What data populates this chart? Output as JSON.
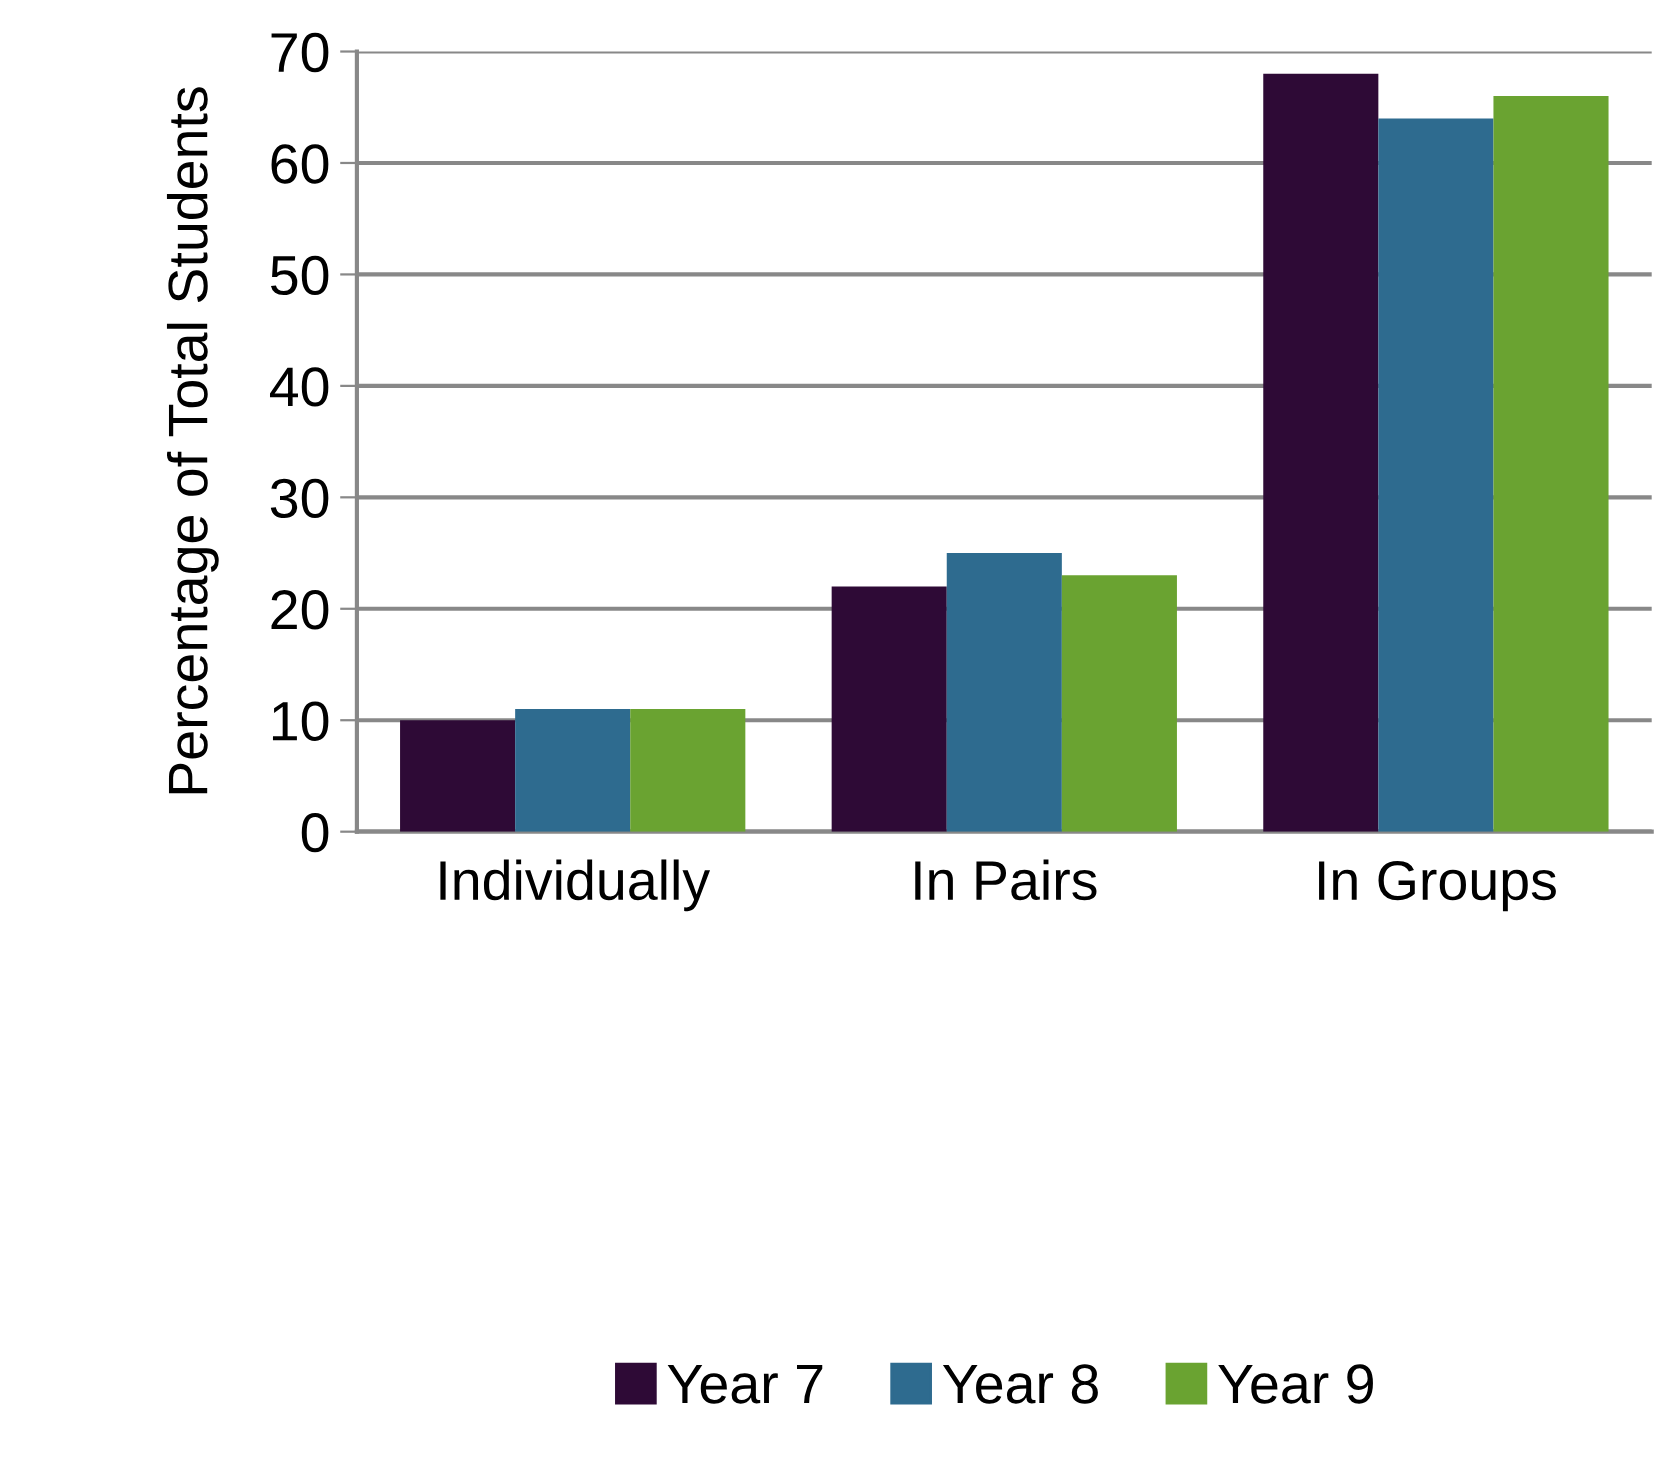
{
  "chart_data": {
    "type": "bar",
    "ylabel": "Percentage of Total Students",
    "categories": [
      "Individually",
      "In Pairs",
      "In Groups"
    ],
    "series": [
      {
        "name": "Year 7",
        "color": "#2e0a36",
        "values": [
          10,
          22,
          68
        ]
      },
      {
        "name": "Year 8",
        "color": "#2e6b8f",
        "values": [
          11,
          25,
          64
        ]
      },
      {
        "name": "Year 9",
        "color": "#6aa331",
        "values": [
          11,
          23,
          66
        ]
      }
    ],
    "ylim": [
      0,
      70
    ],
    "yticks": [
      0,
      10,
      20,
      30,
      40,
      50,
      60,
      70
    ],
    "grid": "y",
    "legend": "bottom"
  }
}
